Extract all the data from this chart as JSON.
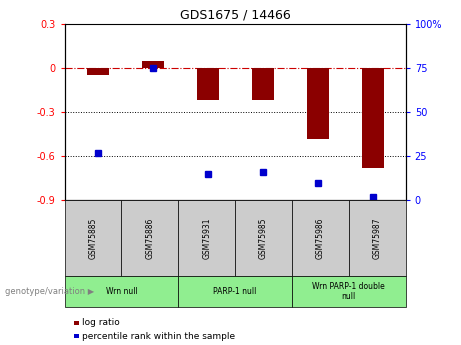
{
  "title": "GDS1675 / 14466",
  "samples": [
    "GSM75885",
    "GSM75886",
    "GSM75931",
    "GSM75985",
    "GSM75986",
    "GSM75987"
  ],
  "log_ratio": [
    -0.05,
    0.05,
    -0.22,
    -0.22,
    -0.48,
    -0.68
  ],
  "percentile_rank": [
    27,
    75,
    15,
    16,
    10,
    2
  ],
  "ylim_left": [
    -0.9,
    0.3
  ],
  "ylim_right": [
    0,
    100
  ],
  "yticks_left": [
    0.3,
    0,
    -0.3,
    -0.6,
    -0.9
  ],
  "yticks_right": [
    100,
    75,
    50,
    25,
    0
  ],
  "dotted_lines": [
    -0.3,
    -0.6
  ],
  "groups": [
    {
      "label": "Wrn null",
      "start": 0,
      "end": 2
    },
    {
      "label": "PARP-1 null",
      "start": 2,
      "end": 4
    },
    {
      "label": "Wrn PARP-1 double\nnull",
      "start": 4,
      "end": 6
    }
  ],
  "bar_color": "#8B0000",
  "dot_color": "#0000CD",
  "dashed_color": "#CC0000",
  "group_color": "#90EE90",
  "sample_box_color": "#CCCCCC",
  "legend_label_red": "log ratio",
  "legend_label_blue": "percentile rank within the sample",
  "genotype_label": "genotype/variation"
}
